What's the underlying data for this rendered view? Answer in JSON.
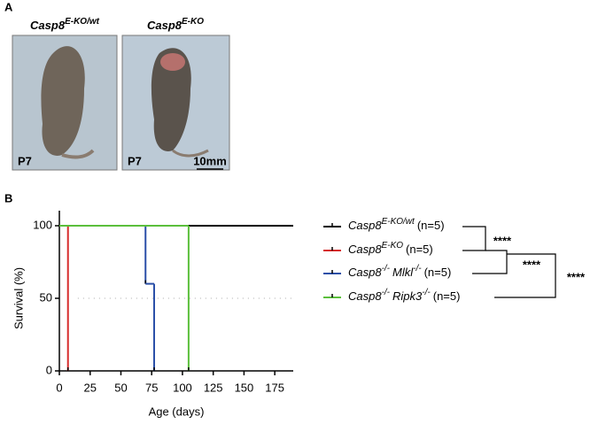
{
  "panels": {
    "a": {
      "label": "A",
      "images": [
        {
          "title": {
            "text": "Casp8",
            "sup": "E-KO/wt"
          },
          "age": "P7"
        },
        {
          "title": {
            "text": "Casp8",
            "sup": "E-KO"
          },
          "age": "P7",
          "scale_bar": "10mm"
        }
      ]
    }
  },
  "chart_data": {
    "type": "survival",
    "panel_label": "B",
    "xlabel": "Age (days)",
    "ylabel": "Survival (%)",
    "xlim": [
      0,
      190
    ],
    "xticks": [
      0,
      25,
      50,
      75,
      100,
      125,
      150,
      175
    ],
    "ylim": [
      0,
      100
    ],
    "yticks": [
      0,
      50,
      100
    ],
    "reference_line": 50,
    "series": [
      {
        "name": [
          {
            "text": "Casp8"
          },
          {
            "text": "E-KO/wt",
            "sup": true
          },
          {
            "text": "(n=5)",
            "plain": true
          }
        ],
        "color": "#000000",
        "x": [
          0,
          190
        ],
        "values": [
          100,
          100
        ]
      },
      {
        "name": [
          {
            "text": "Casp8"
          },
          {
            "text": "E-KO",
            "sup": true
          },
          {
            "text": "(n=5)",
            "plain": true
          }
        ],
        "color": "#d62c2c",
        "x": [
          0,
          7
        ],
        "values": [
          100,
          0
        ]
      },
      {
        "name": [
          {
            "text": "Casp8"
          },
          {
            "text": "-/-",
            "sup": true
          },
          {
            "text": "Mlkl"
          },
          {
            "text": "-/-",
            "sup": true
          },
          {
            "text": "(n=5)",
            "plain": true
          }
        ],
        "color": "#2a4fa8",
        "x": [
          0,
          70,
          77
        ],
        "values": [
          100,
          60,
          0
        ]
      },
      {
        "name": [
          {
            "text": "Casp8"
          },
          {
            "text": "-/-",
            "sup": true
          },
          {
            "text": "Ripk3"
          },
          {
            "text": "-/-",
            "sup": true
          },
          {
            "text": "(n=5)",
            "plain": true
          }
        ],
        "color": "#5bbf3c",
        "x": [
          0,
          105
        ],
        "values": [
          100,
          0
        ]
      }
    ],
    "significance": [
      "****",
      "****",
      "****"
    ]
  }
}
